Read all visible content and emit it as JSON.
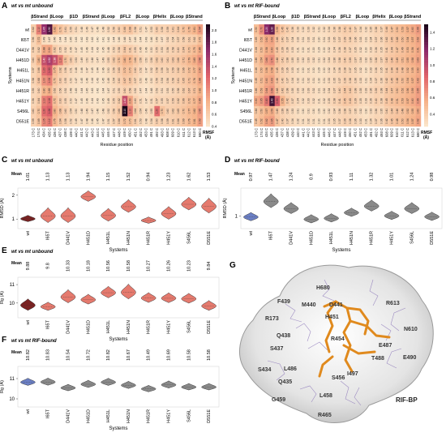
{
  "chart_data": [
    {
      "panel": "A",
      "type": "heatmap",
      "title": "wt vs mt unbound",
      "ylabel": "Systems",
      "xlabel": "Residue position",
      "rows": [
        "wt",
        "I65T",
        "D441V",
        "H451D",
        "H451L",
        "H451N",
        "H451R",
        "H451Y",
        "S456L",
        "D551E"
      ],
      "columns": [
        "173 C",
        "174 C",
        "434 C",
        "435 C",
        "436 C",
        "437 C",
        "438 C",
        "439 C",
        "440 C",
        "441 C",
        "442 C",
        "443 C",
        "444 C",
        "445 C",
        "446 C",
        "447 C",
        "448 C",
        "449 C",
        "450 C",
        "451 C",
        "452 C",
        "453 C",
        "491 C",
        "492 C",
        "493 C",
        "608 C",
        "609 C",
        "610 C",
        "611 C",
        "612 C",
        "613 C",
        "680 C"
      ],
      "segments": [
        "βStrand",
        "βLoop",
        "β1D",
        "βStrand",
        "βLoop",
        "βFL2",
        "βLoop",
        "βHelix",
        "βLoop",
        "βStrand"
      ],
      "colorbar": {
        "label": "RMSF (Å)",
        "ticks": [
          "2.0",
          "1.8",
          "1.6",
          "1.4",
          "1.2",
          "1.0",
          "0.8",
          "0.6",
          "0.4"
        ],
        "min": 0.4,
        "max": 2.1
      },
      "values": [
        [
          0.62,
          1.1,
          1.65,
          1.9,
          0.82,
          0.7,
          0.61,
          0.55,
          0.51,
          0.48,
          0.49,
          0.47,
          0.46,
          0.48,
          0.52,
          0.56,
          0.6,
          0.66,
          0.68,
          0.58,
          0.51,
          0.47,
          0.53,
          0.6,
          0.58,
          0.59,
          0.61,
          0.64,
          0.7,
          0.75,
          0.81,
          0.94
        ],
        [
          0.56,
          0.72,
          0.49,
          0.47,
          0.46,
          0.44,
          0.44,
          0.45,
          0.43,
          0.42,
          0.43,
          0.42,
          0.4,
          0.41,
          0.42,
          0.44,
          0.46,
          0.48,
          0.47,
          0.45,
          0.44,
          0.43,
          0.46,
          0.49,
          0.47,
          0.52,
          0.54,
          0.57,
          0.58,
          0.61,
          0.62,
          0.72
        ],
        [
          0.58,
          0.62,
          0.88,
          0.9,
          0.62,
          0.55,
          0.52,
          0.49,
          0.47,
          0.45,
          0.46,
          0.44,
          0.43,
          0.45,
          0.48,
          0.53,
          0.58,
          0.64,
          0.61,
          0.55,
          0.49,
          0.46,
          0.5,
          0.55,
          0.53,
          0.56,
          0.58,
          0.6,
          0.64,
          0.7,
          0.75,
          0.86
        ],
        [
          0.6,
          0.8,
          1.4,
          1.52,
          1.38,
          1.1,
          0.7,
          0.6,
          0.53,
          0.49,
          0.5,
          0.48,
          0.47,
          0.49,
          0.55,
          0.62,
          0.7,
          0.8,
          0.78,
          0.66,
          0.56,
          0.5,
          0.56,
          0.62,
          0.6,
          0.61,
          0.63,
          0.66,
          0.71,
          0.79,
          0.85,
          0.98
        ],
        [
          0.57,
          0.66,
          1.2,
          1.3,
          0.75,
          0.62,
          0.56,
          0.51,
          0.48,
          0.46,
          0.47,
          0.45,
          0.44,
          0.46,
          0.5,
          0.56,
          0.63,
          0.72,
          0.7,
          0.6,
          0.52,
          0.47,
          0.52,
          0.58,
          0.56,
          0.57,
          0.59,
          0.62,
          0.66,
          0.72,
          0.77,
          0.9
        ],
        [
          0.58,
          0.68,
          1.0,
          1.08,
          0.7,
          0.6,
          0.55,
          0.5,
          0.47,
          0.45,
          0.46,
          0.44,
          0.43,
          0.45,
          0.49,
          0.54,
          0.6,
          0.67,
          0.65,
          0.57,
          0.5,
          0.46,
          0.5,
          0.56,
          0.54,
          0.56,
          0.58,
          0.61,
          0.65,
          0.71,
          0.76,
          0.88
        ],
        [
          0.55,
          0.6,
          0.8,
          0.85,
          0.62,
          0.56,
          0.52,
          0.48,
          0.45,
          0.44,
          0.45,
          0.43,
          0.42,
          0.44,
          0.47,
          0.51,
          0.55,
          0.6,
          0.58,
          0.52,
          0.47,
          0.44,
          0.48,
          0.53,
          0.51,
          0.53,
          0.55,
          0.58,
          0.62,
          0.67,
          0.71,
          0.82
        ],
        [
          0.56,
          0.64,
          1.1,
          1.18,
          0.72,
          0.6,
          0.55,
          0.5,
          0.47,
          0.45,
          0.46,
          0.44,
          0.43,
          0.45,
          0.49,
          0.55,
          0.62,
          1.4,
          0.9,
          0.6,
          0.51,
          0.47,
          0.51,
          0.57,
          0.55,
          0.57,
          0.59,
          0.62,
          0.66,
          0.72,
          0.77,
          0.89
        ],
        [
          0.6,
          0.7,
          1.2,
          1.28,
          0.8,
          0.68,
          0.6,
          0.54,
          0.5,
          0.48,
          0.49,
          0.47,
          0.46,
          0.48,
          0.52,
          0.58,
          0.66,
          2.1,
          1.1,
          0.64,
          0.54,
          0.49,
          0.55,
          1.2,
          0.7,
          0.6,
          0.62,
          0.65,
          0.7,
          0.77,
          0.82,
          0.95
        ],
        [
          0.59,
          0.69,
          1.05,
          1.12,
          0.76,
          0.64,
          0.58,
          0.52,
          0.49,
          0.47,
          0.48,
          0.46,
          0.45,
          0.47,
          0.51,
          0.57,
          0.64,
          0.72,
          0.7,
          0.61,
          0.53,
          0.48,
          0.54,
          0.6,
          0.58,
          0.59,
          0.61,
          0.64,
          0.69,
          0.76,
          0.81,
          0.93
        ]
      ]
    },
    {
      "panel": "B",
      "type": "heatmap",
      "title": "wt vs mt RIF-bound",
      "ylabel": "Systems",
      "xlabel": "Residue position",
      "rows": [
        "wt",
        "I65T",
        "D441V",
        "H451D",
        "H451L",
        "H451N",
        "H451R",
        "H451Y",
        "S456L",
        "D551E"
      ],
      "columns": [
        "173 C",
        "174 C",
        "434 C",
        "435 C",
        "436 C",
        "437 C",
        "438 C",
        "439 C",
        "440 C",
        "441 C",
        "442 C",
        "443 C",
        "444 C",
        "445 C",
        "446 C",
        "447 C",
        "448 C",
        "449 C",
        "450 C",
        "451 C",
        "452 C",
        "453 C",
        "491 C",
        "492 C",
        "493 C",
        "608 C",
        "609 C",
        "610 C",
        "611 C",
        "612 C",
        "613 C",
        "680 C"
      ],
      "segments": [
        "βStrand",
        "βLoop",
        "β1D",
        "βStrand",
        "βLoop",
        "βFL2",
        "βLoop",
        "βHelix",
        "βLoop",
        "βStrand"
      ],
      "colorbar": {
        "label": "RMSF (Å)",
        "ticks": [
          "1.4",
          "1.2",
          "1.0",
          "0.8",
          "0.6",
          "0.4"
        ],
        "min": 0.25,
        "max": 1.5
      },
      "values": [
        [
          0.5,
          0.7,
          1.2,
          1.3,
          0.55,
          0.45,
          0.4,
          0.36,
          0.33,
          0.32,
          0.33,
          0.32,
          0.31,
          0.32,
          0.34,
          0.36,
          0.38,
          0.41,
          0.4,
          0.37,
          0.34,
          0.32,
          0.35,
          0.38,
          0.37,
          0.44,
          0.47,
          0.5,
          0.53,
          0.57,
          0.6,
          0.66
        ],
        [
          0.45,
          0.52,
          0.6,
          0.62,
          0.46,
          0.4,
          0.37,
          0.34,
          0.32,
          0.31,
          0.32,
          0.31,
          0.3,
          0.31,
          0.33,
          0.35,
          0.37,
          0.39,
          0.38,
          0.36,
          0.33,
          0.31,
          0.34,
          0.37,
          0.36,
          0.42,
          0.45,
          0.48,
          0.5,
          0.54,
          0.57,
          0.62
        ],
        [
          0.44,
          0.5,
          0.58,
          0.6,
          0.45,
          0.39,
          0.36,
          0.33,
          0.31,
          0.3,
          0.31,
          0.3,
          0.29,
          0.3,
          0.32,
          0.34,
          0.36,
          0.38,
          0.37,
          0.35,
          0.32,
          0.3,
          0.33,
          0.36,
          0.35,
          0.41,
          0.44,
          0.47,
          0.49,
          0.53,
          0.56,
          0.61
        ],
        [
          0.46,
          0.54,
          0.66,
          0.7,
          0.48,
          0.41,
          0.38,
          0.35,
          0.33,
          0.32,
          0.33,
          0.32,
          0.31,
          0.32,
          0.34,
          0.36,
          0.38,
          0.4,
          0.39,
          0.37,
          0.34,
          0.32,
          0.35,
          0.38,
          0.37,
          0.43,
          0.46,
          0.49,
          0.51,
          0.55,
          0.58,
          0.63
        ],
        [
          0.44,
          0.5,
          0.56,
          0.58,
          0.45,
          0.39,
          0.36,
          0.33,
          0.31,
          0.3,
          0.31,
          0.3,
          0.29,
          0.3,
          0.32,
          0.34,
          0.36,
          0.38,
          0.37,
          0.35,
          0.32,
          0.3,
          0.33,
          0.36,
          0.35,
          0.41,
          0.44,
          0.46,
          0.48,
          0.52,
          0.55,
          0.6
        ],
        [
          0.45,
          0.51,
          0.6,
          0.63,
          0.46,
          0.4,
          0.37,
          0.34,
          0.32,
          0.31,
          0.32,
          0.31,
          0.3,
          0.31,
          0.33,
          0.35,
          0.37,
          0.39,
          0.38,
          0.36,
          0.33,
          0.31,
          0.34,
          0.37,
          0.36,
          0.42,
          0.45,
          0.48,
          0.5,
          0.54,
          0.57,
          0.62
        ],
        [
          0.46,
          0.53,
          0.64,
          0.68,
          0.48,
          0.42,
          0.38,
          0.35,
          0.33,
          0.32,
          0.33,
          0.32,
          0.31,
          0.32,
          0.34,
          0.37,
          0.4,
          0.44,
          0.42,
          0.38,
          0.35,
          0.33,
          0.36,
          0.39,
          0.38,
          0.44,
          0.47,
          0.5,
          0.52,
          0.56,
          0.59,
          0.65
        ],
        [
          0.6,
          0.65,
          0.8,
          1.4,
          0.9,
          0.55,
          0.42,
          0.37,
          0.34,
          0.32,
          0.33,
          0.32,
          0.31,
          0.32,
          0.35,
          0.38,
          0.41,
          0.45,
          0.43,
          0.39,
          0.35,
          0.33,
          0.36,
          0.4,
          0.38,
          0.45,
          0.48,
          0.51,
          0.53,
          0.57,
          0.6,
          0.66
        ],
        [
          0.44,
          0.5,
          0.57,
          0.59,
          0.45,
          0.39,
          0.36,
          0.33,
          0.31,
          0.3,
          0.31,
          0.3,
          0.29,
          0.3,
          0.32,
          0.34,
          0.36,
          0.38,
          0.37,
          0.35,
          0.32,
          0.3,
          0.33,
          0.36,
          0.35,
          0.41,
          0.44,
          0.46,
          0.48,
          0.52,
          0.55,
          0.6
        ],
        [
          0.45,
          0.52,
          0.62,
          0.65,
          0.47,
          0.4,
          0.37,
          0.34,
          0.32,
          0.31,
          0.32,
          0.31,
          0.3,
          0.31,
          0.33,
          0.35,
          0.37,
          0.39,
          0.38,
          0.36,
          0.33,
          0.31,
          0.34,
          0.37,
          0.36,
          0.42,
          0.45,
          0.48,
          0.5,
          0.54,
          0.57,
          0.62
        ]
      ]
    },
    {
      "panel": "C",
      "type": "violin",
      "title": "wt vs mt unbound",
      "xlabel": "Systems",
      "ylabel": "RMSD (Å)",
      "ylim": [
        0.6,
        2.3
      ],
      "yticks": [
        1,
        2
      ],
      "means_label": "Mean",
      "categories": [
        "wt",
        "I65T",
        "D441V",
        "H451D",
        "H451L",
        "H451N",
        "H451R",
        "H451Y",
        "S456L",
        "D551E"
      ],
      "means": [
        "1.01",
        "1.13",
        "1.13",
        "1.94",
        "1.15",
        "1.52",
        "0.94",
        "1.23",
        "1.62",
        "1.53"
      ],
      "values": [
        1.01,
        1.13,
        1.13,
        1.94,
        1.15,
        1.52,
        0.94,
        1.23,
        1.62,
        1.53
      ],
      "spread": [
        0.15,
        0.35,
        0.35,
        0.25,
        0.3,
        0.3,
        0.15,
        0.3,
        0.3,
        0.35
      ]
    },
    {
      "panel": "D",
      "type": "violin",
      "title": "wt vs mt RIF-bound",
      "xlabel": "Systems",
      "ylabel": "RMSD (Å)",
      "ylim": [
        0.6,
        1.9
      ],
      "yticks": [
        1
      ],
      "means_label": "Mean",
      "categories": [
        "wt",
        "I65T",
        "D441V",
        "H451D",
        "H451L",
        "H451N",
        "H451R",
        "H451Y",
        "S456L",
        "D551E"
      ],
      "means": [
        "0.97",
        "1.47",
        "1.24",
        "0.9",
        "0.93",
        "1.11",
        "1.32",
        "1.01",
        "1.24",
        "0.98"
      ],
      "values": [
        0.97,
        1.47,
        1.24,
        0.9,
        0.93,
        1.11,
        1.32,
        1.01,
        1.24,
        0.98
      ],
      "spread": [
        0.15,
        0.25,
        0.2,
        0.15,
        0.15,
        0.15,
        0.2,
        0.15,
        0.2,
        0.15
      ]
    },
    {
      "panel": "E",
      "type": "violin",
      "title": "wt vs mt unbound",
      "xlabel": "Systems",
      "ylabel": "Rg (Å)",
      "ylim": [
        9.2,
        11.4
      ],
      "yticks": [
        10,
        11
      ],
      "means_label": "Mean",
      "categories": [
        "wt",
        "I65T",
        "D441V",
        "H451D",
        "H451L",
        "H451N",
        "H451R",
        "H451Y",
        "S456L",
        "D551E"
      ],
      "means": [
        "9.88",
        "9.8",
        "10.33",
        "10.18",
        "10.56",
        "10.58",
        "10.27",
        "10.26",
        "10.23",
        "9.84"
      ],
      "values": [
        9.88,
        9.8,
        10.33,
        10.18,
        10.56,
        10.58,
        10.27,
        10.26,
        10.23,
        9.84
      ],
      "spread": [
        0.35,
        0.25,
        0.4,
        0.3,
        0.35,
        0.45,
        0.3,
        0.3,
        0.3,
        0.3
      ]
    },
    {
      "panel": "F",
      "type": "violin",
      "title": "wt vs mt RIF-bound",
      "xlabel": "Systems",
      "ylabel": "Rg (Å)",
      "ylim": [
        9.6,
        11.6
      ],
      "yticks": [
        10,
        11
      ],
      "means_label": "Mean",
      "categories": [
        "wt",
        "I65T",
        "D441V",
        "H451D",
        "H451L",
        "H451N",
        "H451R",
        "H451Y",
        "S456L",
        "D551E"
      ],
      "means": [
        "10.82",
        "10.83",
        "10.54",
        "10.72",
        "10.82",
        "10.67",
        "10.49",
        "10.69",
        "10.58",
        "10.58"
      ],
      "values": [
        10.82,
        10.83,
        10.54,
        10.72,
        10.82,
        10.67,
        10.49,
        10.69,
        10.58,
        10.58
      ],
      "spread": [
        0.2,
        0.2,
        0.18,
        0.2,
        0.2,
        0.2,
        0.18,
        0.2,
        0.18,
        0.18
      ]
    }
  ],
  "panel_letters": {
    "a": "A",
    "b": "B",
    "c": "C",
    "d": "D",
    "e": "E",
    "f": "F",
    "g": "G"
  },
  "structure": {
    "caption": "RIF-BP",
    "residues": [
      "H680",
      "F439",
      "M440",
      "D441",
      "R613",
      "R173",
      "H451",
      "Q438",
      "R454",
      "N610",
      "S437",
      "E487",
      "T488",
      "E490",
      "S434",
      "L486",
      "I497",
      "Q435",
      "S456",
      "G459",
      "L458",
      "R465"
    ]
  },
  "colors": {
    "violin_mt": "#e57a6e",
    "violin_wt": "#6b7fc4",
    "violin_grey": "#8a8a8a",
    "heat_low": "#fbe3c2",
    "heat_high": "#1a0519"
  }
}
